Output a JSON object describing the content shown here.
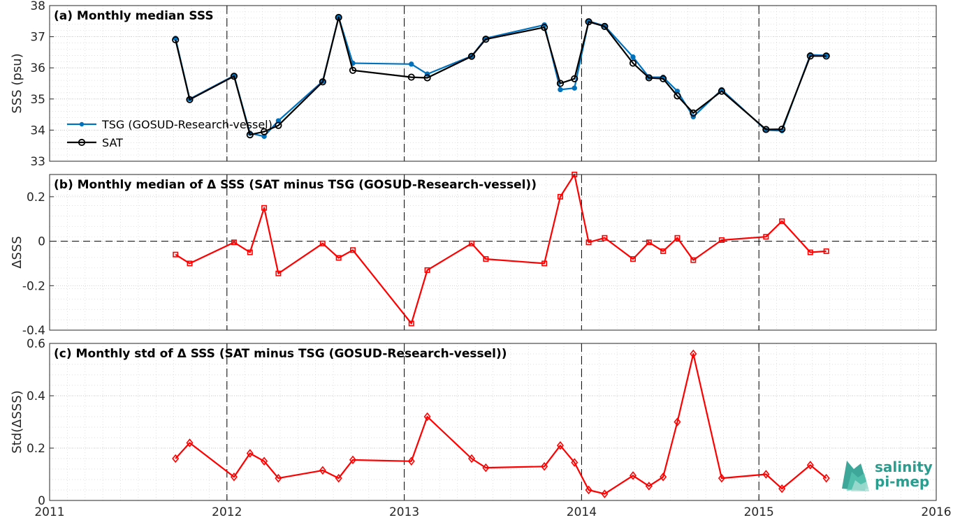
{
  "chart_data": [
    {
      "type": "line",
      "title": "(a) Monthly median SSS",
      "ylabel": "SSS (psu)",
      "xlim": [
        2011,
        2016
      ],
      "ylim": [
        33,
        38
      ],
      "yticks": [
        33,
        34,
        35,
        36,
        37,
        38
      ],
      "xticks": [
        2011,
        2012,
        2013,
        2014,
        2015,
        2016
      ],
      "grid": "minor-dotted",
      "legend": "lower-left",
      "series": [
        {
          "name": "TSG (GOSUD-Research-vessel)",
          "color": "#0072BD",
          "marker": "dot",
          "x": [
            2011.71,
            2011.79,
            2012.04,
            2012.13,
            2012.21,
            2012.29,
            2012.54,
            2012.63,
            2012.71,
            2013.04,
            2013.13,
            2013.38,
            2013.46,
            2013.79,
            2013.88,
            2013.96,
            2014.04,
            2014.13,
            2014.29,
            2014.38,
            2014.46,
            2014.54,
            2014.63,
            2014.79,
            2015.04,
            2015.13,
            2015.29,
            2015.38
          ],
          "y": [
            36.95,
            35.0,
            35.75,
            33.9,
            33.8,
            34.3,
            35.57,
            37.63,
            36.15,
            36.12,
            35.8,
            36.38,
            36.95,
            37.38,
            35.3,
            35.35,
            37.5,
            37.35,
            36.35,
            35.7,
            35.7,
            35.25,
            34.43,
            35.3,
            34.0,
            33.98,
            36.42,
            36.4
          ]
        },
        {
          "name": "SAT",
          "color": "#000000",
          "marker": "circle",
          "x": [
            2011.71,
            2011.79,
            2012.04,
            2012.13,
            2012.21,
            2012.29,
            2012.54,
            2012.63,
            2012.71,
            2013.04,
            2013.13,
            2013.38,
            2013.46,
            2013.79,
            2013.88,
            2013.96,
            2014.04,
            2014.13,
            2014.29,
            2014.38,
            2014.46,
            2014.54,
            2014.63,
            2014.79,
            2015.04,
            2015.13,
            2015.29,
            2015.38
          ],
          "y": [
            36.9,
            34.98,
            35.73,
            33.85,
            33.95,
            34.15,
            35.55,
            37.62,
            35.92,
            35.7,
            35.68,
            36.37,
            36.92,
            37.3,
            35.5,
            35.65,
            37.48,
            37.33,
            36.15,
            35.68,
            35.65,
            35.1,
            34.55,
            35.25,
            34.02,
            34.03,
            36.38,
            36.38
          ]
        }
      ]
    },
    {
      "type": "line",
      "title": "(b) Monthly median of Δ SSS (SAT minus TSG (GOSUD-Research-vessel))",
      "ylabel": "ΔSSS",
      "xlim": [
        2011,
        2016
      ],
      "ylim": [
        -0.4,
        0.3
      ],
      "yticks": [
        -0.4,
        -0.2,
        0,
        0.2
      ],
      "ytick_labels": [
        "-0.4",
        "-0.2",
        "0",
        "0.2"
      ],
      "reference_line": 0,
      "series": [
        {
          "name": "",
          "color": "#FF0000",
          "marker": "square",
          "x": [
            2011.71,
            2011.79,
            2012.04,
            2012.13,
            2012.21,
            2012.29,
            2012.54,
            2012.63,
            2012.71,
            2013.04,
            2013.13,
            2013.38,
            2013.46,
            2013.79,
            2013.88,
            2013.96,
            2014.04,
            2014.13,
            2014.29,
            2014.38,
            2014.46,
            2014.54,
            2014.63,
            2014.79,
            2015.04,
            2015.13,
            2015.29,
            2015.38
          ],
          "y": [
            -0.06,
            -0.1,
            -0.005,
            -0.05,
            0.15,
            -0.145,
            -0.01,
            -0.075,
            -0.04,
            -0.37,
            -0.13,
            -0.01,
            -0.08,
            -0.1,
            0.2,
            0.3,
            -0.005,
            0.015,
            -0.08,
            -0.005,
            -0.045,
            0.015,
            -0.085,
            0.005,
            0.02,
            0.09,
            -0.05,
            -0.045
          ]
        }
      ]
    },
    {
      "type": "line",
      "title": "(c) Monthly std of Δ SSS (SAT minus TSG (GOSUD-Research-vessel))",
      "ylabel": "Std(ΔSSS)",
      "xlim": [
        2011,
        2016
      ],
      "ylim": [
        0,
        0.6
      ],
      "yticks": [
        0,
        0.2,
        0.4,
        0.6
      ],
      "ytick_labels": [
        "0",
        "0.2",
        "0.4",
        "0.6"
      ],
      "xtick_labels": [
        "2011",
        "2012",
        "2013",
        "2014",
        "2015",
        "2016"
      ],
      "series": [
        {
          "name": "",
          "color": "#FF0000",
          "marker": "diamond",
          "x": [
            2011.71,
            2011.79,
            2012.04,
            2012.13,
            2012.21,
            2012.29,
            2012.54,
            2012.63,
            2012.71,
            2013.04,
            2013.13,
            2013.38,
            2013.46,
            2013.79,
            2013.88,
            2013.96,
            2014.04,
            2014.13,
            2014.29,
            2014.38,
            2014.46,
            2014.54,
            2014.63,
            2014.79,
            2015.04,
            2015.13,
            2015.29,
            2015.38
          ],
          "y": [
            0.16,
            0.22,
            0.09,
            0.18,
            0.15,
            0.085,
            0.115,
            0.085,
            0.155,
            0.15,
            0.32,
            0.16,
            0.125,
            0.13,
            0.21,
            0.145,
            0.04,
            0.025,
            0.095,
            0.055,
            0.09,
            0.3,
            0.56,
            0.085,
            0.1,
            0.045,
            0.135,
            0.085
          ]
        }
      ]
    }
  ],
  "logo": {
    "line1": "salinity",
    "line2": "pi-mep"
  }
}
